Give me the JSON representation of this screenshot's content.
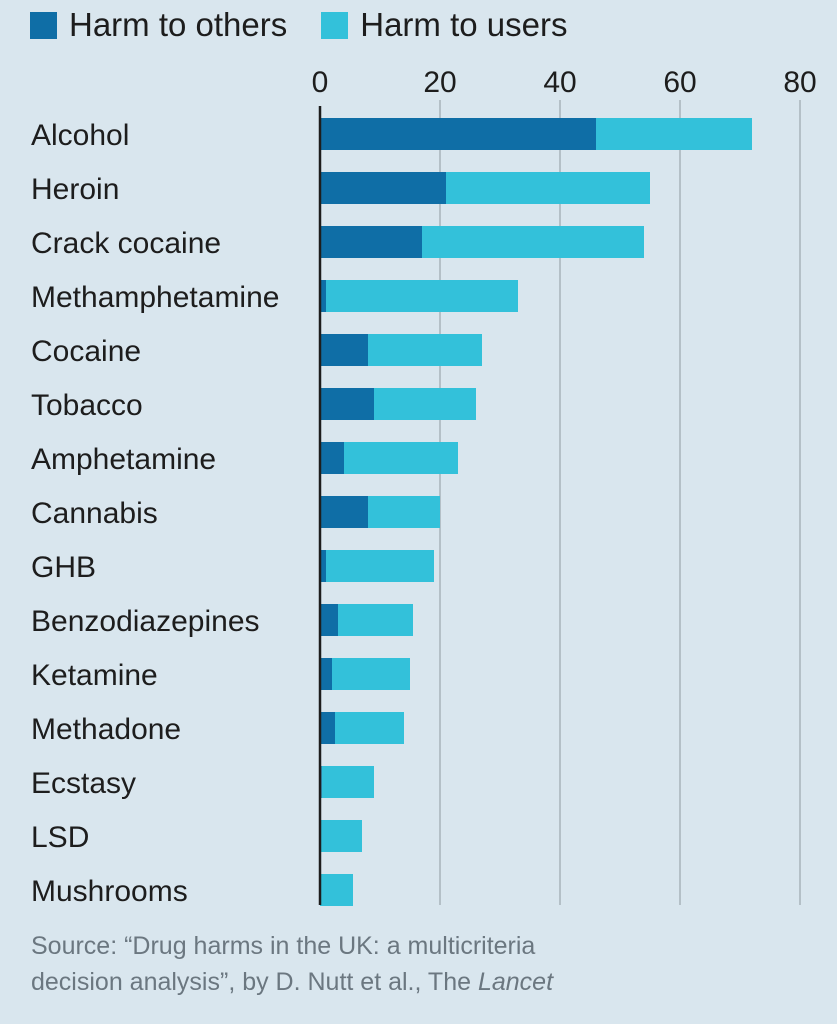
{
  "chart_data": {
    "type": "bar",
    "orientation": "horizontal",
    "stacked": true,
    "categories": [
      "Alcohol",
      "Heroin",
      "Crack cocaine",
      "Methamphetamine",
      "Cocaine",
      "Tobacco",
      "Amphetamine",
      "Cannabis",
      "GHB",
      "Benzodiazepines",
      "Ketamine",
      "Methadone",
      "Ecstasy",
      "LSD",
      "Mushrooms"
    ],
    "series": [
      {
        "name": "Harm to others",
        "color": "#0f6ea6",
        "values": [
          46,
          21,
          17,
          1,
          8,
          9,
          4,
          8,
          1,
          3,
          2,
          2.5,
          0.3,
          0,
          0
        ]
      },
      {
        "name": "Harm to users",
        "color": "#33c1da",
        "values": [
          26,
          34,
          37,
          32,
          19,
          17,
          19,
          12,
          18,
          12.5,
          13,
          11.5,
          8.7,
          7,
          5.5
        ]
      }
    ],
    "xlim": [
      0,
      80
    ],
    "xticks": [
      "0",
      "20",
      "40",
      "60",
      "80"
    ],
    "xtick_values": [
      0,
      20,
      40,
      60,
      80
    ],
    "grid": true,
    "legend_position": "top-left",
    "source_line1": "Source: “Drug harms in the UK: a multicriteria",
    "source_line2a": "decision analysis”, by D. Nutt et al., The ",
    "source_line2b": "Lancet"
  }
}
